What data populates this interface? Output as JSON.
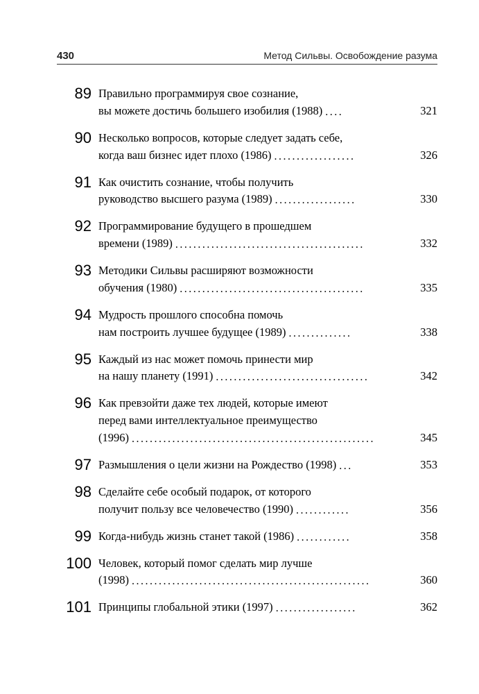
{
  "header": {
    "page_number": "430",
    "running_title": "Метод Сильвы. Освобождение разума"
  },
  "toc": [
    {
      "idx": "89",
      "lines": [
        "Правильно программируя свое сознание,"
      ],
      "tail": "вы можете достичь большего изобилия (1988)",
      "leaders": "....",
      "page": "321"
    },
    {
      "idx": "90",
      "lines": [
        "Несколько вопросов, которые следует задать себе,"
      ],
      "tail": "когда ваш бизнес идет плохо (1986)",
      "leaders": "..................",
      "page": "326"
    },
    {
      "idx": "91",
      "lines": [
        "Как очистить сознание, чтобы получить"
      ],
      "tail": "руководство высшего разума (1989)",
      "leaders": "..................",
      "page": "330"
    },
    {
      "idx": "92",
      "lines": [
        "Программирование будущего в прошедшем"
      ],
      "tail": "времени (1989)",
      "leaders": "..........................................",
      "page": "332"
    },
    {
      "idx": "93",
      "lines": [
        "Методики Сильвы расширяют возможности"
      ],
      "tail": "обучения (1980)",
      "leaders": ".........................................",
      "page": "335"
    },
    {
      "idx": "94",
      "lines": [
        "Мудрость прошлого способна помочь"
      ],
      "tail": "нам построить лучшее будущее (1989)",
      "leaders": "..............",
      "page": "338"
    },
    {
      "idx": "95",
      "lines": [
        "Каждый из нас может помочь принести мир"
      ],
      "tail": "на нашу планету (1991)",
      "leaders": "..................................",
      "page": "342"
    },
    {
      "idx": "96",
      "lines": [
        "Как превзойти даже тех людей, которые имеют",
        "перед вами интеллектуальное преимущество"
      ],
      "tail": "(1996)",
      "leaders": "......................................................",
      "page": "345"
    },
    {
      "idx": "97",
      "lines": [],
      "tail": "Размышления о цели жизни на Рождество (1998)",
      "leaders": "...",
      "page": "353"
    },
    {
      "idx": "98",
      "lines": [
        "Сделайте себе особый подарок, от которого"
      ],
      "tail": "получит пользу все человечество (1990)",
      "leaders": " ............",
      "page": "356"
    },
    {
      "idx": "99",
      "lines": [],
      "tail": "Когда-нибудь жизнь станет такой (1986)",
      "leaders": " ............",
      "page": "358"
    },
    {
      "idx": "100",
      "lines": [
        "Человек, который помог сделать мир лучше"
      ],
      "tail": "(1998)",
      "leaders": " .....................................................",
      "page": "360"
    },
    {
      "idx": "101",
      "lines": [],
      "tail": "Принципы глобальной этики (1997)",
      "leaders": "..................",
      "page": "362"
    }
  ]
}
